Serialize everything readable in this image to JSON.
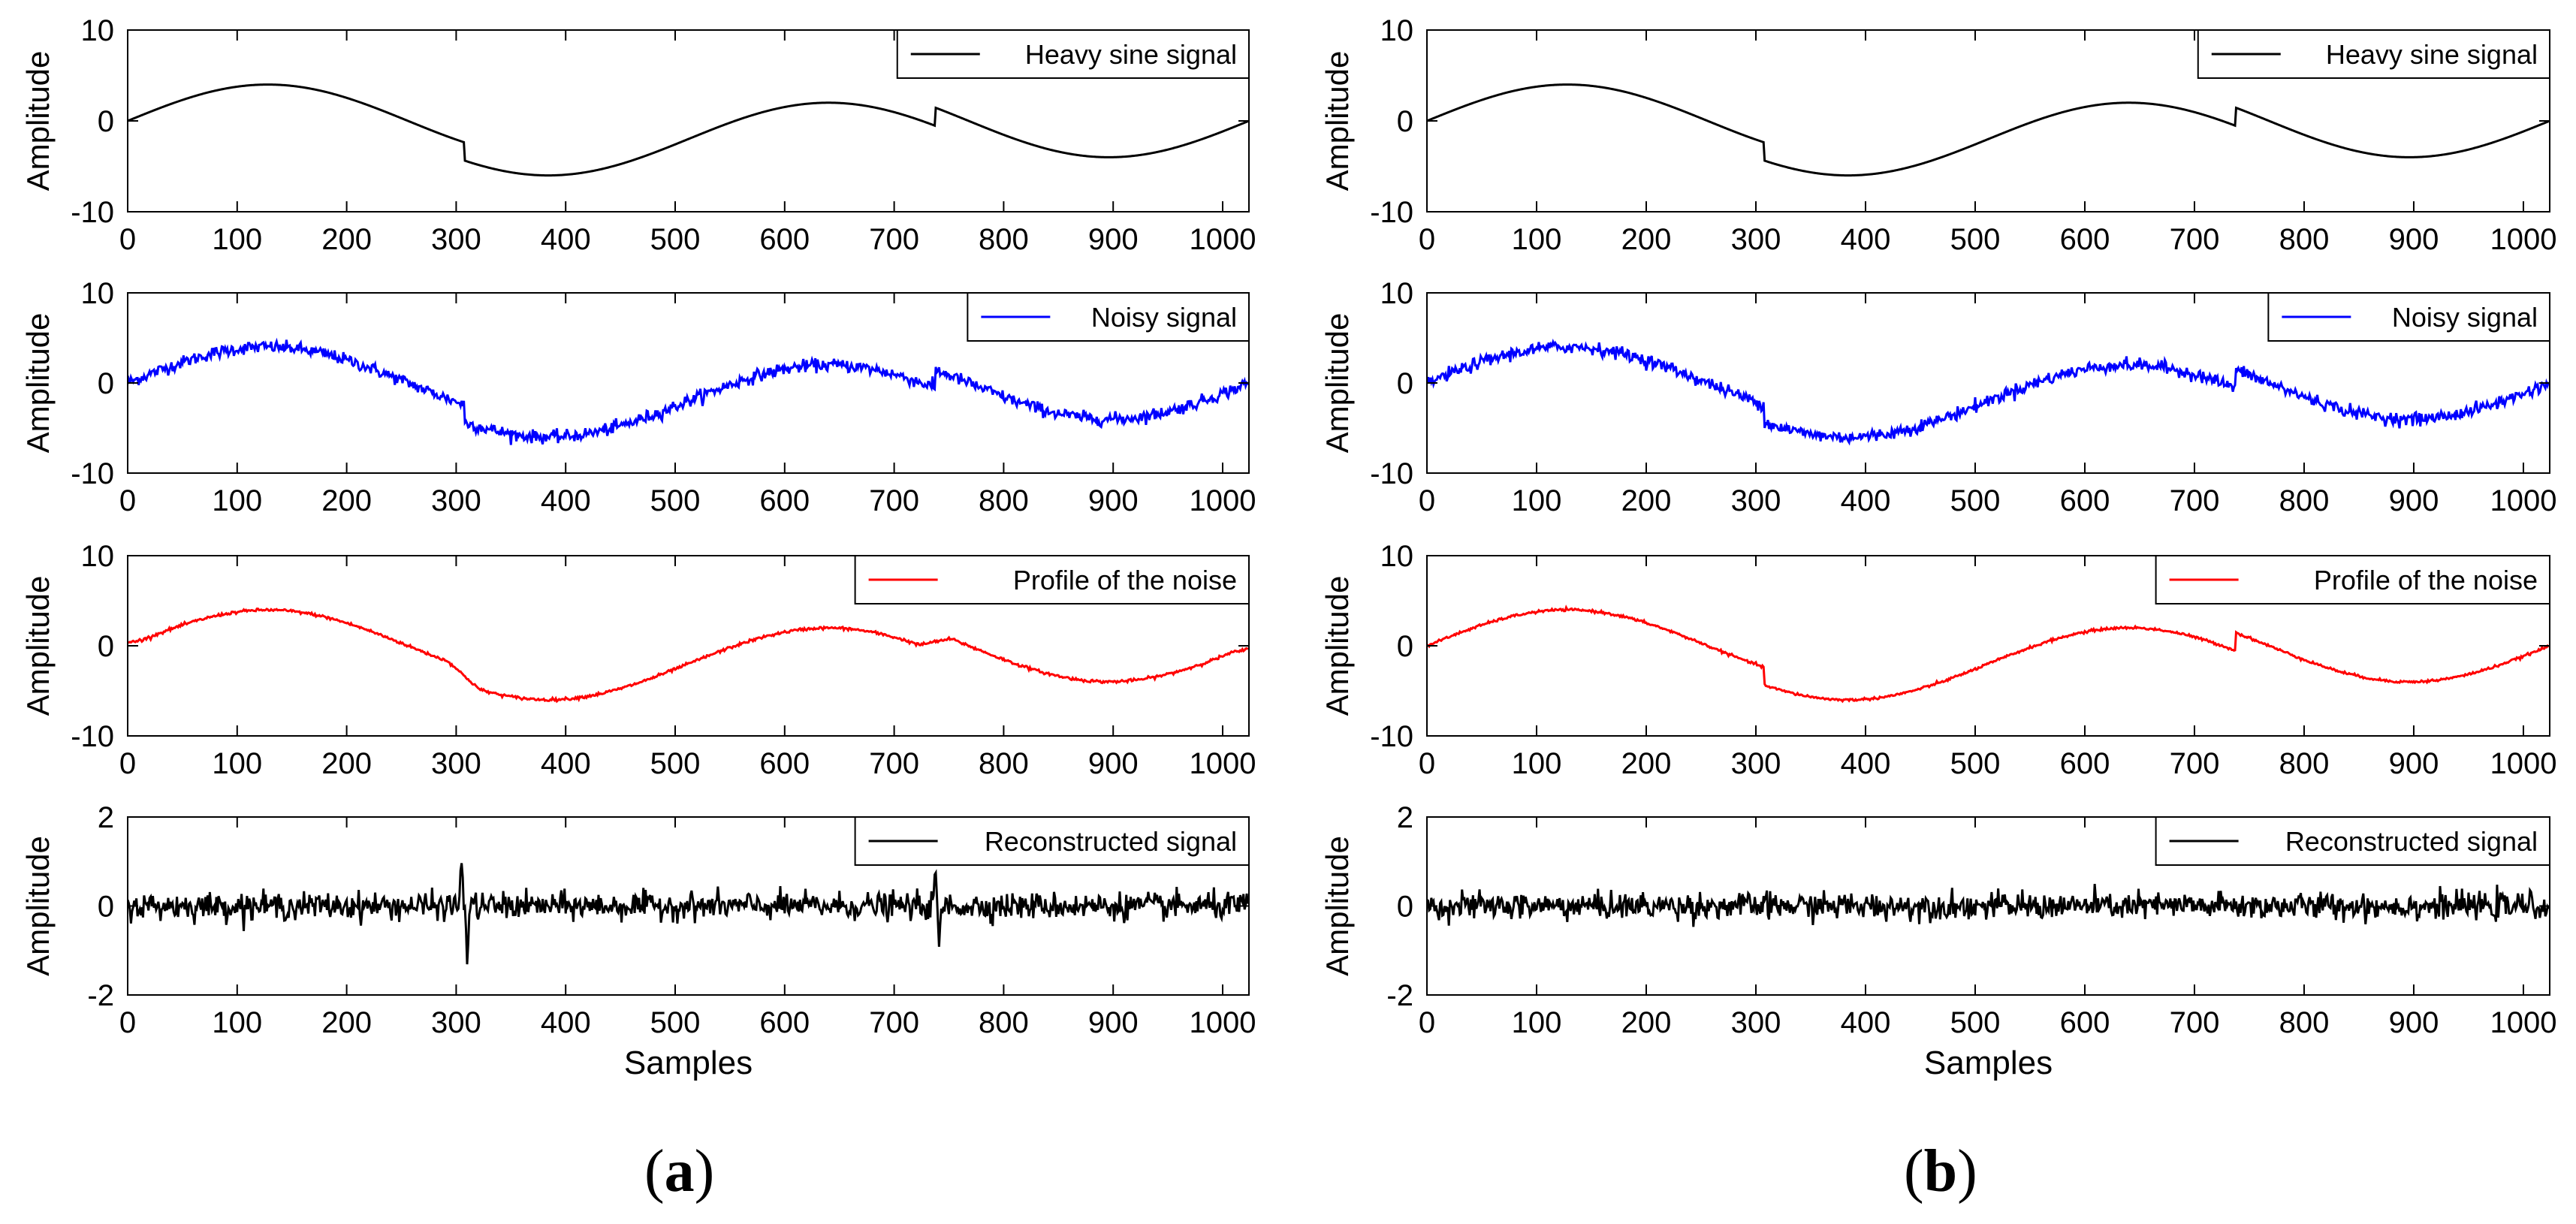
{
  "chart_data": [
    {
      "type": "line",
      "panel": "a",
      "ylabel": "Amplitude",
      "xlim": [
        0,
        1024
      ],
      "ylim": [
        -10,
        10
      ],
      "xticks": [
        0,
        100,
        200,
        300,
        400,
        500,
        600,
        700,
        800,
        900,
        1000
      ],
      "yticks": [
        -10,
        0,
        10
      ],
      "series": [
        {
          "name": "Heavy sine signal",
          "color": "#000000",
          "kind": "heavysine"
        }
      ],
      "legend_position": "top-right",
      "grid": false
    },
    {
      "type": "line",
      "panel": "a",
      "ylabel": "Amplitude",
      "xlim": [
        0,
        1024
      ],
      "ylim": [
        -10,
        10
      ],
      "xticks": [
        0,
        100,
        200,
        300,
        400,
        500,
        600,
        700,
        800,
        900,
        1000
      ],
      "yticks": [
        -10,
        0,
        10
      ],
      "series": [
        {
          "name": "Noisy signal",
          "color": "#0000ff",
          "kind": "noisy",
          "noise_std": 0.35
        }
      ],
      "legend_position": "top-right",
      "grid": false
    },
    {
      "type": "line",
      "panel": "a",
      "ylabel": "Amplitude",
      "xlim": [
        0,
        1024
      ],
      "ylim": [
        -10,
        10
      ],
      "xticks": [
        0,
        100,
        200,
        300,
        400,
        500,
        600,
        700,
        800,
        900,
        1000
      ],
      "yticks": [
        -10,
        0,
        10
      ],
      "series": [
        {
          "name": "Profile of the noise",
          "color": "#ff0000",
          "kind": "smoothed"
        }
      ],
      "legend_position": "top-right",
      "grid": false
    },
    {
      "type": "line",
      "panel": "a",
      "ylabel": "Amplitude",
      "xlabel": "Samples",
      "xlim": [
        0,
        1024
      ],
      "ylim": [
        -2,
        2
      ],
      "xticks": [
        0,
        100,
        200,
        300,
        400,
        500,
        600,
        700,
        800,
        900,
        1000
      ],
      "yticks": [
        -2,
        0,
        2
      ],
      "series": [
        {
          "name": "Reconstructed signal",
          "color": "#000000",
          "kind": "residual",
          "noise_std": 0.15,
          "spikes": [
            [
              305,
              1.05
            ],
            [
              310,
              -1.15
            ],
            [
              738,
              0.8
            ],
            [
              741,
              -1.05
            ]
          ]
        }
      ],
      "legend_position": "top-right",
      "grid": false
    },
    {
      "type": "line",
      "panel": "b",
      "ylabel": "Amplitude",
      "xlim": [
        0,
        1024
      ],
      "ylim": [
        -10,
        10
      ],
      "xticks": [
        0,
        100,
        200,
        300,
        400,
        500,
        600,
        700,
        800,
        900,
        1000
      ],
      "yticks": [
        -10,
        0,
        10
      ],
      "series": [
        {
          "name": "Heavy sine signal",
          "color": "#000000",
          "kind": "heavysine"
        }
      ],
      "legend_position": "top-right",
      "grid": false
    },
    {
      "type": "line",
      "panel": "b",
      "ylabel": "Amplitude",
      "xlim": [
        0,
        1024
      ],
      "ylim": [
        -10,
        10
      ],
      "xticks": [
        0,
        100,
        200,
        300,
        400,
        500,
        600,
        700,
        800,
        900,
        1000
      ],
      "yticks": [
        -10,
        0,
        10
      ],
      "series": [
        {
          "name": "Noisy signal",
          "color": "#0000ff",
          "kind": "noisy",
          "noise_std": 0.35
        }
      ],
      "legend_position": "top-right",
      "grid": false
    },
    {
      "type": "line",
      "panel": "b",
      "ylabel": "Amplitude",
      "xlim": [
        0,
        1024
      ],
      "ylim": [
        -10,
        10
      ],
      "xticks": [
        0,
        100,
        200,
        300,
        400,
        500,
        600,
        700,
        800,
        900,
        1000
      ],
      "yticks": [
        -10,
        0,
        10
      ],
      "series": [
        {
          "name": "Profile of the noise",
          "color": "#ff0000",
          "kind": "preserved"
        }
      ],
      "legend_position": "top-right",
      "grid": false
    },
    {
      "type": "line",
      "panel": "b",
      "ylabel": "Amplitude",
      "xlabel": "Samples",
      "xlim": [
        0,
        1024
      ],
      "ylim": [
        -2,
        2
      ],
      "xticks": [
        0,
        100,
        200,
        300,
        400,
        500,
        600,
        700,
        800,
        900,
        1000
      ],
      "yticks": [
        -2,
        0,
        2
      ],
      "series": [
        {
          "name": "Reconstructed signal",
          "color": "#000000",
          "kind": "residual",
          "noise_std": 0.15,
          "spikes": []
        }
      ],
      "legend_position": "top-right",
      "grid": false
    }
  ],
  "panel_labels": {
    "a": {
      "open": "(",
      "letter": "a",
      "close": ")"
    },
    "b": {
      "open": "(",
      "letter": "b",
      "close": ")"
    }
  }
}
